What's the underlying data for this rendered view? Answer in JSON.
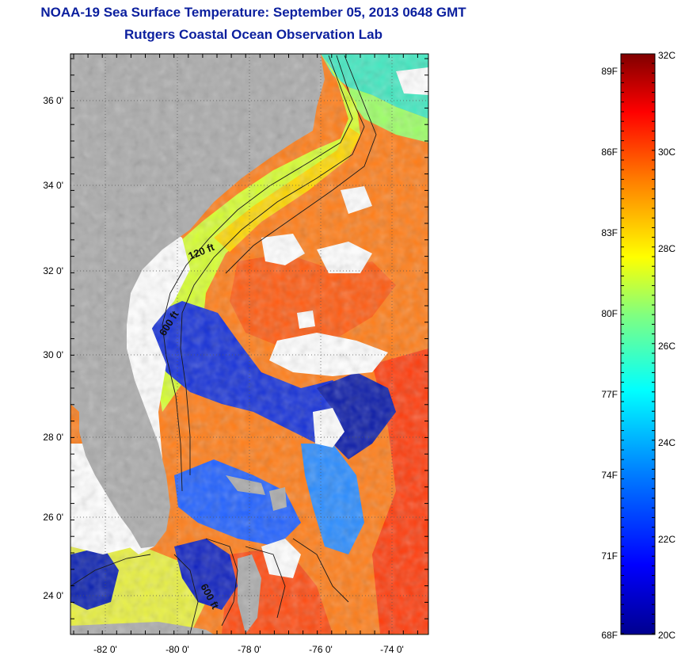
{
  "header": {
    "title": "NOAA-19 Sea Surface Temperature:  September 05, 2013 0648 GMT",
    "subtitle": "Rutgers Coastal Ocean Observation Lab"
  },
  "map": {
    "lat_ticks": [
      "36 0'",
      "34 0'",
      "32 0'",
      "30 0'",
      "28 0'",
      "26 0'",
      "24 0'"
    ],
    "lon_ticks": [
      "-82 0'",
      "-80 0'",
      "-78 0'",
      "-76 0'",
      "-74 0'"
    ],
    "contour_labels": [
      "120 ft",
      "600 ft",
      "600 ft"
    ],
    "colors": {
      "land": "#ababab",
      "cloud": "#ffffff",
      "contour": "#1a1a1a"
    }
  },
  "colorbar": {
    "fahrenheit_labels": [
      "89F",
      "86F",
      "83F",
      "80F",
      "77F",
      "74F",
      "71F",
      "68F"
    ],
    "celsius_labels": [
      "32C",
      "30C",
      "28C",
      "26C",
      "24C",
      "22C",
      "20C"
    ],
    "colors": [
      "#00008f",
      "#0000ff",
      "#0080ff",
      "#00ffff",
      "#80ff80",
      "#ffff00",
      "#ff8000",
      "#ff0000",
      "#800000"
    ]
  }
}
